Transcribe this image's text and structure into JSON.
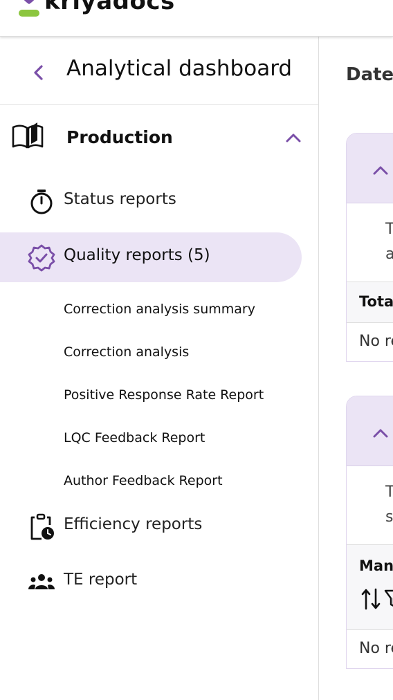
{
  "app": {
    "brand": "kriyadocs",
    "brand_color": "#7a4fa8",
    "accent_green": "#8cc63f"
  },
  "sidebar": {
    "back_icon": "chevron-left-icon",
    "title": "Analytical dashboard",
    "section": {
      "label": "Production",
      "icon": "book-open-icon",
      "expand_icon": "chevron-up-icon",
      "expanded": true
    },
    "items": [
      {
        "label": "Status reports",
        "icon": "stopwatch-icon"
      },
      {
        "label": "Quality reports (5)",
        "icon": "verified-badge-icon",
        "active": true,
        "children": [
          "Correction analysis summary",
          "Correction analysis",
          "Positive Response Rate Report",
          "LQC Feedback Report",
          "Author Feedback Report"
        ]
      },
      {
        "label": "Efficiency reports",
        "icon": "clipboard-clock-icon"
      },
      {
        "label": "TE report",
        "icon": "team-icon"
      }
    ]
  },
  "main": {
    "date_label": "Date",
    "cards": [
      {
        "desc_lines": [
          "T",
          "a"
        ],
        "column_label": "Tota",
        "empty_text": "No re"
      },
      {
        "desc_lines": [
          "T",
          "s"
        ],
        "column_label": "Man",
        "empty_text": "No re"
      }
    ]
  }
}
